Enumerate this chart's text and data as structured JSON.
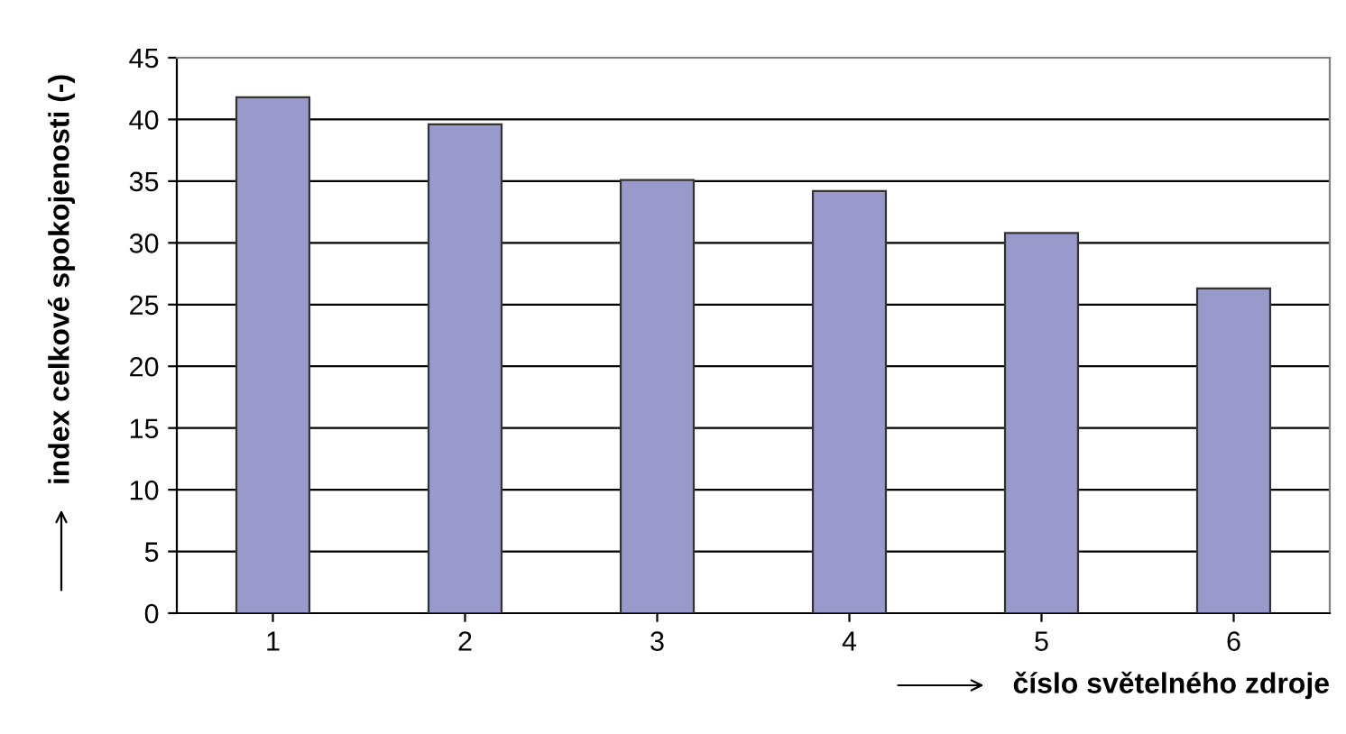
{
  "chart_data": {
    "type": "bar",
    "xlabel": "číslo světelného zdroje",
    "ylabel": "index celkové spokojenosti (-)",
    "categories": [
      "1",
      "2",
      "3",
      "4",
      "5",
      "6"
    ],
    "values": [
      41.8,
      39.6,
      35.1,
      34.2,
      30.8,
      26.3
    ],
    "color": "#9999cc",
    "ylim": [
      0,
      45
    ],
    "yticks": [
      0,
      5,
      10,
      15,
      20,
      25,
      30,
      35,
      40,
      45
    ],
    "grid": "y",
    "legend": false
  }
}
